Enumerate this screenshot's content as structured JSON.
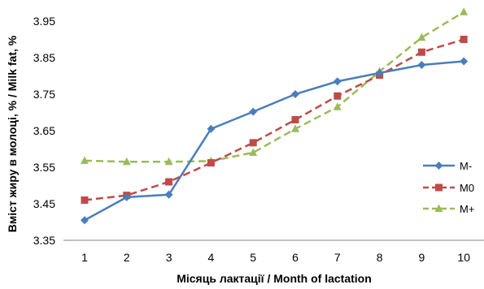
{
  "chart_data": {
    "type": "line",
    "xlabel": "Місяць лактації / Month of lactation",
    "ylabel": "Вміст жиру в молоці, % / Milk fat, %",
    "categories": [
      "1",
      "2",
      "3",
      "4",
      "5",
      "6",
      "7",
      "8",
      "9",
      "10"
    ],
    "ylim": [
      3.35,
      3.95
    ],
    "yticks": [
      "3.35",
      "3.45",
      "3.55",
      "3.65",
      "3.75",
      "3.85",
      "3.95"
    ],
    "grid": false,
    "legend_position": "right",
    "series": [
      {
        "name": "M-",
        "color": "#4a7ebb",
        "marker": "diamond",
        "dash": "solid",
        "values": [
          3.405,
          3.468,
          3.475,
          3.655,
          3.702,
          3.75,
          3.785,
          3.808,
          3.83,
          3.84
        ]
      },
      {
        "name": "M0",
        "color": "#be4b48",
        "marker": "square",
        "dash": "dashed",
        "values": [
          3.46,
          3.473,
          3.51,
          3.562,
          3.617,
          3.68,
          3.745,
          3.802,
          3.865,
          3.9
        ]
      },
      {
        "name": "M+",
        "color": "#9bbb59",
        "marker": "triangle",
        "dash": "dashed",
        "values": [
          3.568,
          3.565,
          3.565,
          3.567,
          3.59,
          3.655,
          3.715,
          3.812,
          3.905,
          3.975
        ]
      }
    ]
  }
}
